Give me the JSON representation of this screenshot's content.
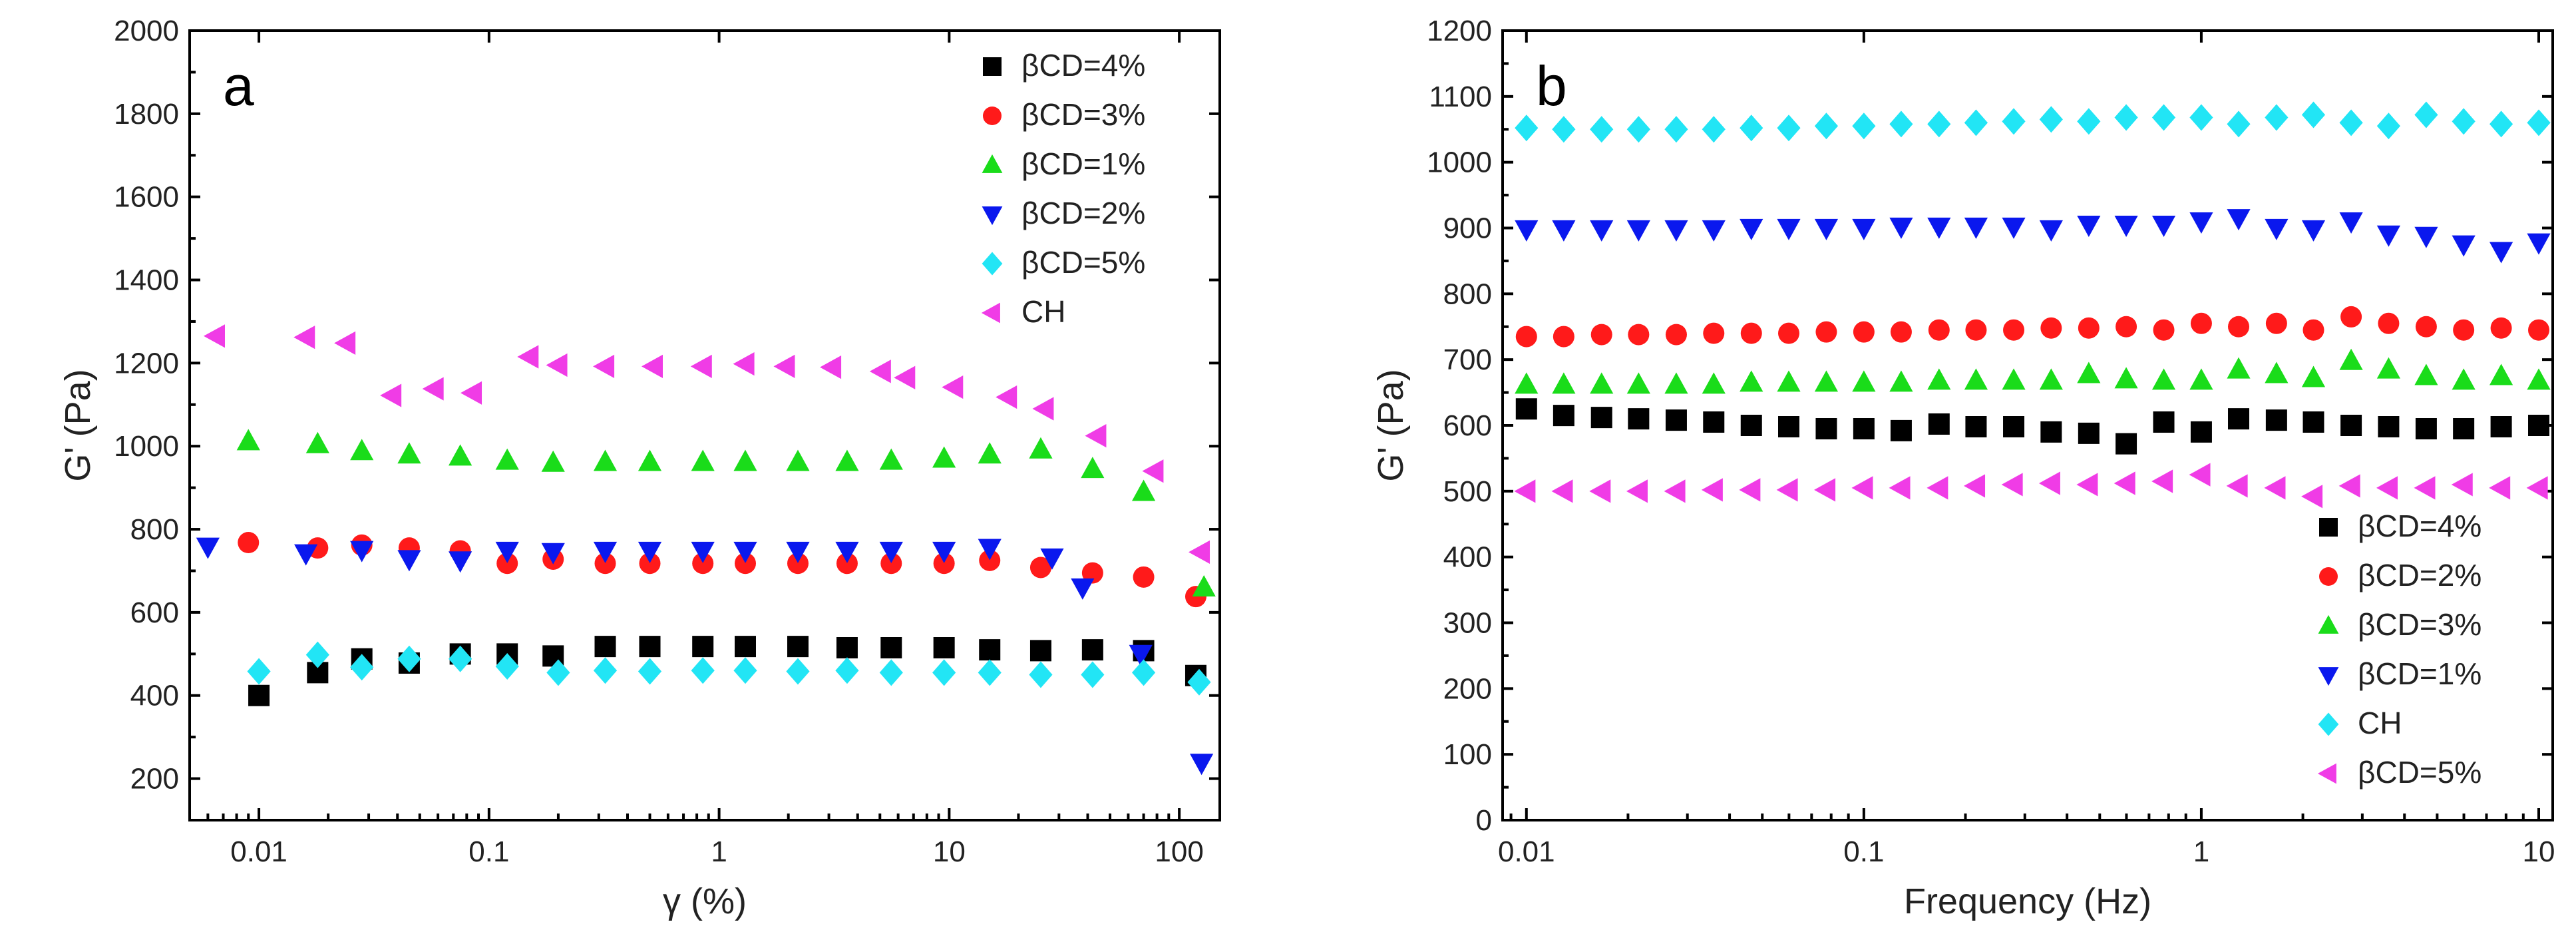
{
  "chart_data": [
    {
      "type": "scatter",
      "panel_label": "a",
      "xlabel": "γ (%)",
      "ylabel": "G' (Pa)",
      "xscale": "log",
      "xlim": [
        0.005,
        150
      ],
      "ylim": [
        100,
        2000
      ],
      "xticks": [
        {
          "v": 0.01,
          "label": "0.01"
        },
        {
          "v": 0.1,
          "label": "0.1"
        },
        {
          "v": 1,
          "label": "1"
        },
        {
          "v": 10,
          "label": "10"
        },
        {
          "v": 100,
          "label": "100"
        }
      ],
      "yticks": [
        200,
        400,
        600,
        800,
        1000,
        1200,
        1400,
        1600,
        1800,
        2000
      ],
      "legend_position": "top-right",
      "series": [
        {
          "name": "βCD=4%",
          "marker": "square",
          "color": "#000000",
          "x": [
            0.01,
            0.018,
            0.028,
            0.045,
            0.075,
            0.12,
            0.19,
            0.32,
            0.5,
            0.85,
            1.3,
            2.2,
            3.6,
            5.6,
            9.5,
            15,
            25,
            42,
            70,
            118
          ],
          "y": [
            400,
            455,
            488,
            478,
            500,
            500,
            495,
            518,
            518,
            518,
            518,
            518,
            515,
            515,
            515,
            510,
            508,
            510,
            508,
            448
          ]
        },
        {
          "name": "βCD=3%",
          "marker": "circle",
          "color": "#ff1a1a",
          "x": [
            0.009,
            0.018,
            0.028,
            0.045,
            0.075,
            0.12,
            0.19,
            0.32,
            0.5,
            0.85,
            1.3,
            2.2,
            3.6,
            5.6,
            9.5,
            15,
            25,
            42,
            70,
            118
          ],
          "y": [
            768,
            755,
            762,
            755,
            748,
            718,
            728,
            718,
            718,
            718,
            718,
            718,
            718,
            718,
            718,
            725,
            708,
            695,
            685,
            638
          ]
        },
        {
          "name": "βCD=1%",
          "marker": "triangle-up",
          "color": "#1adc1a",
          "x": [
            0.009,
            0.018,
            0.028,
            0.045,
            0.075,
            0.12,
            0.19,
            0.32,
            0.5,
            0.85,
            1.3,
            2.2,
            3.6,
            5.6,
            9.5,
            15,
            25,
            42,
            70,
            128
          ],
          "y": [
            1012,
            1005,
            988,
            980,
            975,
            965,
            960,
            962,
            962,
            962,
            962,
            962,
            962,
            965,
            970,
            980,
            992,
            945,
            890,
            660
          ]
        },
        {
          "name": "βCD=2%",
          "marker": "triangle-down",
          "color": "#0a18ee",
          "x": [
            0.006,
            0.016,
            0.028,
            0.045,
            0.075,
            0.12,
            0.19,
            0.32,
            0.5,
            0.85,
            1.3,
            2.2,
            3.6,
            5.6,
            9.5,
            15,
            28,
            38,
            68,
            125
          ],
          "y": [
            758,
            742,
            750,
            728,
            725,
            748,
            745,
            748,
            748,
            748,
            748,
            748,
            748,
            748,
            748,
            755,
            732,
            660,
            500,
            238
          ]
        },
        {
          "name": "βCD=5%",
          "marker": "diamond",
          "color": "#22e5f5",
          "x": [
            0.01,
            0.018,
            0.028,
            0.045,
            0.075,
            0.12,
            0.2,
            0.32,
            0.5,
            0.85,
            1.3,
            2.2,
            3.6,
            5.6,
            9.5,
            15,
            25,
            42,
            70,
            122
          ],
          "y": [
            458,
            498,
            468,
            488,
            488,
            470,
            455,
            460,
            458,
            460,
            460,
            458,
            460,
            455,
            455,
            455,
            450,
            450,
            455,
            432
          ]
        },
        {
          "name": "CH",
          "marker": "triangle-left",
          "color": "#f03ce6",
          "x": [
            0.0065,
            0.016,
            0.024,
            0.038,
            0.058,
            0.085,
            0.15,
            0.2,
            0.32,
            0.52,
            0.85,
            1.3,
            1.95,
            3.1,
            5.1,
            6.5,
            10.5,
            18,
            26,
            44,
            78,
            124
          ],
          "y": [
            1265,
            1262,
            1248,
            1122,
            1138,
            1128,
            1215,
            1195,
            1192,
            1192,
            1192,
            1198,
            1192,
            1190,
            1180,
            1165,
            1142,
            1118,
            1090,
            1025,
            940,
            745
          ]
        }
      ]
    },
    {
      "type": "scatter",
      "panel_label": "b",
      "xlabel": "Frequency (Hz)",
      "ylabel": "G' (Pa)",
      "xscale": "log",
      "xlim": [
        0.0085,
        11
      ],
      "ylim": [
        0,
        1200
      ],
      "xticks": [
        {
          "v": 0.01,
          "label": "0.01"
        },
        {
          "v": 0.1,
          "label": "0.1"
        },
        {
          "v": 1,
          "label": "1"
        },
        {
          "v": 10,
          "label": "10"
        }
      ],
      "yticks": [
        0,
        100,
        200,
        300,
        400,
        500,
        600,
        700,
        800,
        900,
        1000,
        1100,
        1200
      ],
      "legend_position": "bottom-right",
      "series": [
        {
          "name": "βCD=4%",
          "marker": "square",
          "color": "#000000",
          "x": [
            0.01,
            0.0129,
            0.0167,
            0.0215,
            0.0278,
            0.0359,
            0.0464,
            0.0599,
            0.0774,
            0.1,
            0.129,
            0.167,
            0.215,
            0.278,
            0.359,
            0.464,
            0.599,
            0.774,
            1.0,
            1.29,
            1.67,
            2.15,
            2.78,
            3.59,
            4.64,
            5.99,
            7.74,
            10.0
          ],
          "y": [
            625,
            615,
            612,
            610,
            608,
            605,
            600,
            598,
            595,
            595,
            592,
            602,
            598,
            598,
            590,
            588,
            572,
            605,
            590,
            610,
            608,
            605,
            600,
            598,
            595,
            595,
            598,
            600
          ]
        },
        {
          "name": "βCD=2%",
          "marker": "circle",
          "color": "#ff1a1a",
          "x": [
            0.01,
            0.0129,
            0.0167,
            0.0215,
            0.0278,
            0.0359,
            0.0464,
            0.0599,
            0.0774,
            0.1,
            0.129,
            0.167,
            0.215,
            0.278,
            0.359,
            0.464,
            0.599,
            0.774,
            1.0,
            1.29,
            1.67,
            2.15,
            2.78,
            3.59,
            4.64,
            5.99,
            7.74,
            10.0
          ],
          "y": [
            735,
            735,
            738,
            738,
            738,
            740,
            740,
            740,
            742,
            742,
            742,
            745,
            745,
            745,
            748,
            748,
            750,
            745,
            755,
            750,
            755,
            745,
            765,
            755,
            750,
            745,
            748,
            745
          ]
        },
        {
          "name": "βCD=3%",
          "marker": "triangle-up",
          "color": "#1adc1a",
          "x": [
            0.01,
            0.0129,
            0.0167,
            0.0215,
            0.0278,
            0.0359,
            0.0464,
            0.0599,
            0.0774,
            0.1,
            0.129,
            0.167,
            0.215,
            0.278,
            0.359,
            0.464,
            0.599,
            0.774,
            1.0,
            1.29,
            1.67,
            2.15,
            2.78,
            3.59,
            4.64,
            5.99,
            7.74,
            10.0
          ],
          "y": [
            662,
            662,
            662,
            662,
            662,
            662,
            665,
            665,
            665,
            665,
            665,
            668,
            668,
            668,
            668,
            678,
            670,
            668,
            668,
            685,
            678,
            672,
            698,
            685,
            675,
            668,
            675,
            668
          ]
        },
        {
          "name": "βCD=1%",
          "marker": "triangle-down",
          "color": "#0a18ee",
          "x": [
            0.01,
            0.0129,
            0.0167,
            0.0215,
            0.0278,
            0.0359,
            0.0464,
            0.0599,
            0.0774,
            0.1,
            0.129,
            0.167,
            0.215,
            0.278,
            0.359,
            0.464,
            0.599,
            0.774,
            1.0,
            1.29,
            1.67,
            2.15,
            2.78,
            3.59,
            4.64,
            5.99,
            7.74,
            10.0
          ],
          "y": [
            898,
            898,
            898,
            898,
            898,
            898,
            900,
            900,
            900,
            900,
            902,
            902,
            902,
            902,
            898,
            905,
            905,
            905,
            910,
            915,
            900,
            898,
            910,
            890,
            888,
            875,
            865,
            878
          ]
        },
        {
          "name": "CH",
          "marker": "diamond",
          "color": "#22e5f5",
          "x": [
            0.01,
            0.0129,
            0.0167,
            0.0215,
            0.0278,
            0.0359,
            0.0464,
            0.0599,
            0.0774,
            0.1,
            0.129,
            0.167,
            0.215,
            0.278,
            0.359,
            0.464,
            0.599,
            0.774,
            1.0,
            1.29,
            1.67,
            2.15,
            2.78,
            3.59,
            4.64,
            5.99,
            7.74,
            10.0
          ],
          "y": [
            1052,
            1050,
            1050,
            1050,
            1050,
            1050,
            1052,
            1052,
            1055,
            1055,
            1058,
            1058,
            1060,
            1062,
            1065,
            1062,
            1068,
            1068,
            1068,
            1058,
            1068,
            1072,
            1060,
            1055,
            1072,
            1062,
            1058,
            1060
          ]
        },
        {
          "name": "βCD=5%",
          "marker": "triangle-left",
          "color": "#f03ce6",
          "x": [
            0.01,
            0.0129,
            0.0167,
            0.0215,
            0.0278,
            0.0359,
            0.0464,
            0.0599,
            0.0774,
            0.1,
            0.129,
            0.167,
            0.215,
            0.278,
            0.359,
            0.464,
            0.599,
            0.774,
            1.0,
            1.29,
            1.67,
            2.15,
            2.78,
            3.59,
            4.64,
            5.99,
            7.74,
            10.0
          ],
          "y": [
            500,
            500,
            500,
            500,
            500,
            502,
            502,
            502,
            502,
            505,
            505,
            505,
            508,
            510,
            512,
            510,
            512,
            515,
            525,
            508,
            505,
            492,
            508,
            505,
            505,
            510,
            505,
            505
          ]
        }
      ]
    }
  ]
}
